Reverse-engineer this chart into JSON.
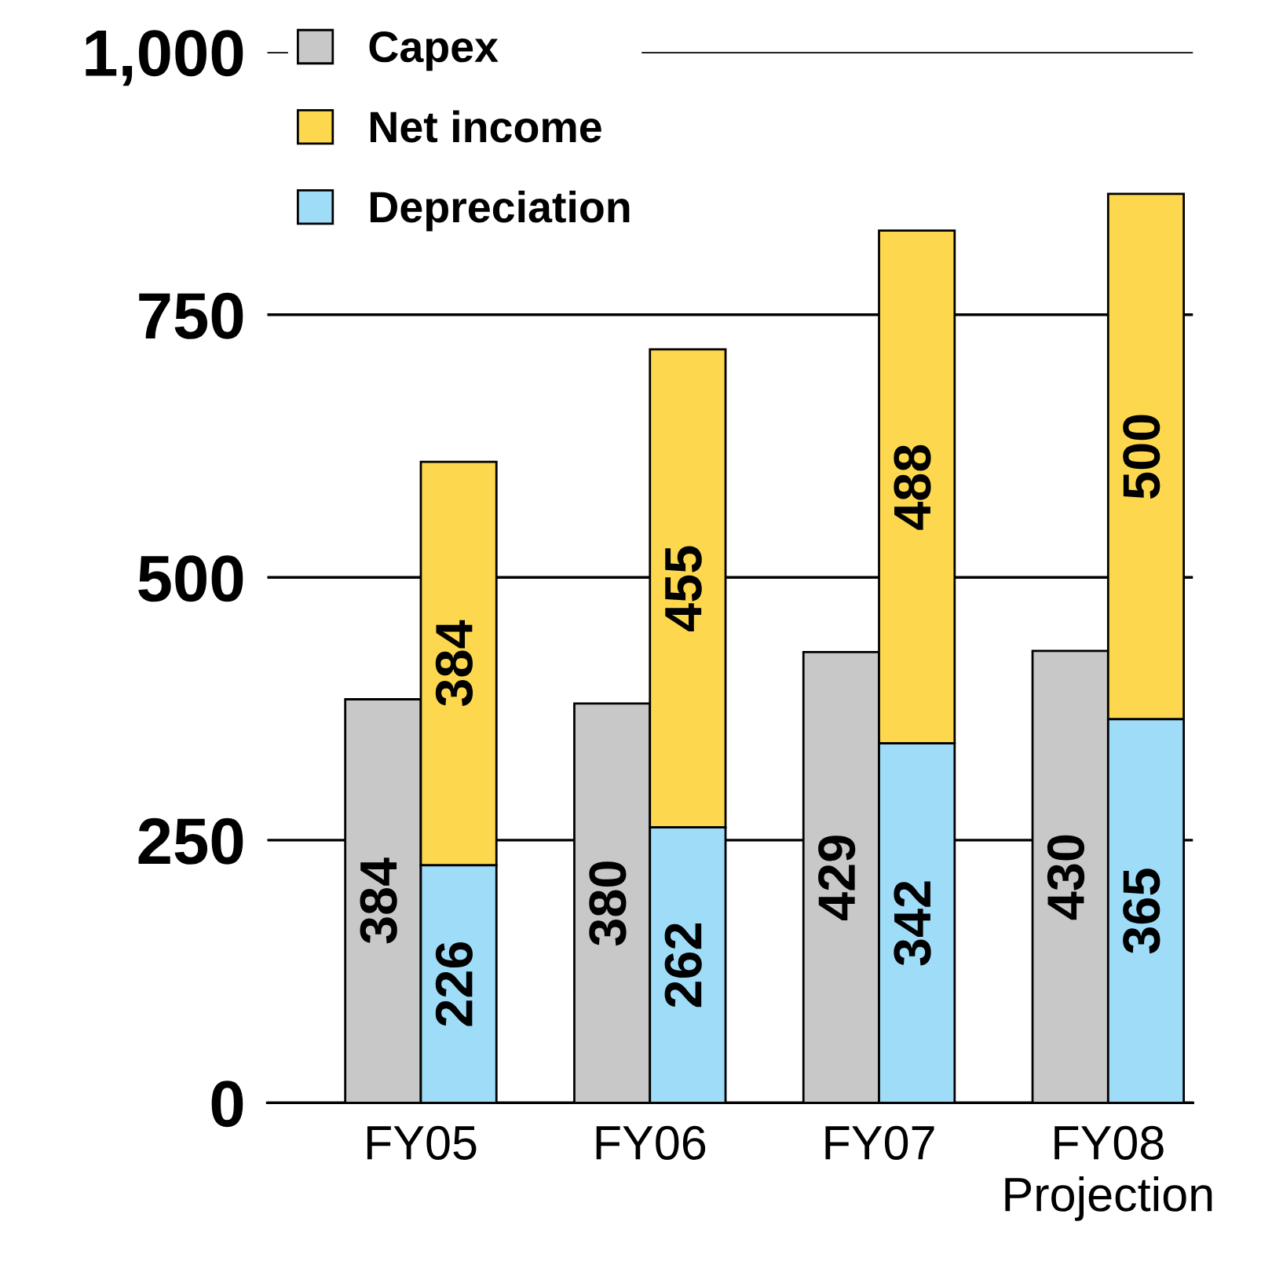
{
  "chart_data": {
    "type": "bar",
    "categories": [
      "FY05",
      "FY06",
      "FY07",
      "FY08\nProjection"
    ],
    "series": [
      {
        "name": "Capex",
        "color": "#c8c8c8",
        "values": [
          384,
          380,
          429,
          430
        ]
      },
      {
        "name": "Net income",
        "color": "#fdd84e",
        "values": [
          384,
          455,
          488,
          500
        ],
        "base": [
          226,
          262,
          342,
          365
        ]
      },
      {
        "name": "Depreciation",
        "color": "#9edcf8",
        "values": [
          226,
          262,
          342,
          365
        ]
      }
    ],
    "ylim": [
      0,
      1000
    ],
    "yticks": [
      0,
      250,
      500,
      750,
      {
        "value": 1000,
        "label": "1,000"
      }
    ],
    "grid": "y",
    "legend": "top left",
    "data_labels": true
  }
}
